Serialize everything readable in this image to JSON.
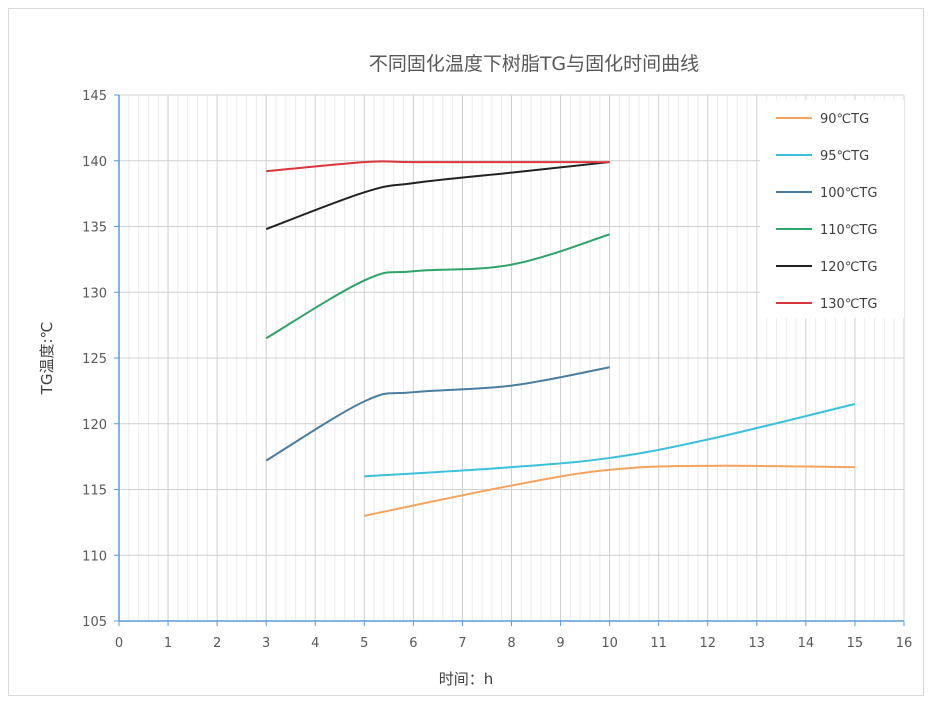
{
  "chart_data": {
    "type": "line",
    "title": "不同固化温度下树脂TG与固化时间曲线",
    "xlabel": "时间：h",
    "ylabel": "TG温度:℃",
    "xlim": [
      0,
      16
    ],
    "ylim": [
      105,
      145
    ],
    "x_ticks": [
      0,
      1,
      2,
      3,
      4,
      5,
      6,
      7,
      8,
      9,
      10,
      11,
      12,
      13,
      14,
      15,
      16
    ],
    "y_ticks": [
      105,
      110,
      115,
      120,
      125,
      130,
      135,
      140,
      145
    ],
    "grid": true,
    "legend_position": "top-right",
    "series": [
      {
        "name": "90℃TG",
        "color": "#F4A460",
        "x": [
          5,
          8,
          10,
          12,
          15
        ],
        "y": [
          113,
          115.3,
          116.5,
          116.8,
          116.7
        ]
      },
      {
        "name": "95℃TG",
        "color": "#3CC0DC",
        "x": [
          5,
          8,
          10,
          12,
          15
        ],
        "y": [
          116,
          116.7,
          117.4,
          118.8,
          121.5
        ]
      },
      {
        "name": "100℃TG",
        "color": "#4A7EA0",
        "x": [
          3,
          5,
          6,
          8,
          10
        ],
        "y": [
          117.2,
          121.7,
          122.4,
          122.9,
          124.3
        ]
      },
      {
        "name": "110℃TG",
        "color": "#2FA36B",
        "x": [
          3,
          5,
          6,
          8,
          10
        ],
        "y": [
          126.5,
          130.9,
          131.6,
          132.1,
          134.4
        ]
      },
      {
        "name": "120℃TG",
        "color": "#222222",
        "x": [
          3,
          5,
          6,
          8,
          10
        ],
        "y": [
          134.8,
          137.6,
          138.3,
          139.1,
          139.9
        ]
      },
      {
        "name": "130℃TG",
        "color": "#D9363E",
        "x": [
          3,
          5,
          6,
          8,
          10
        ],
        "y": [
          139.2,
          139.9,
          139.9,
          139.9,
          139.9
        ]
      }
    ]
  }
}
